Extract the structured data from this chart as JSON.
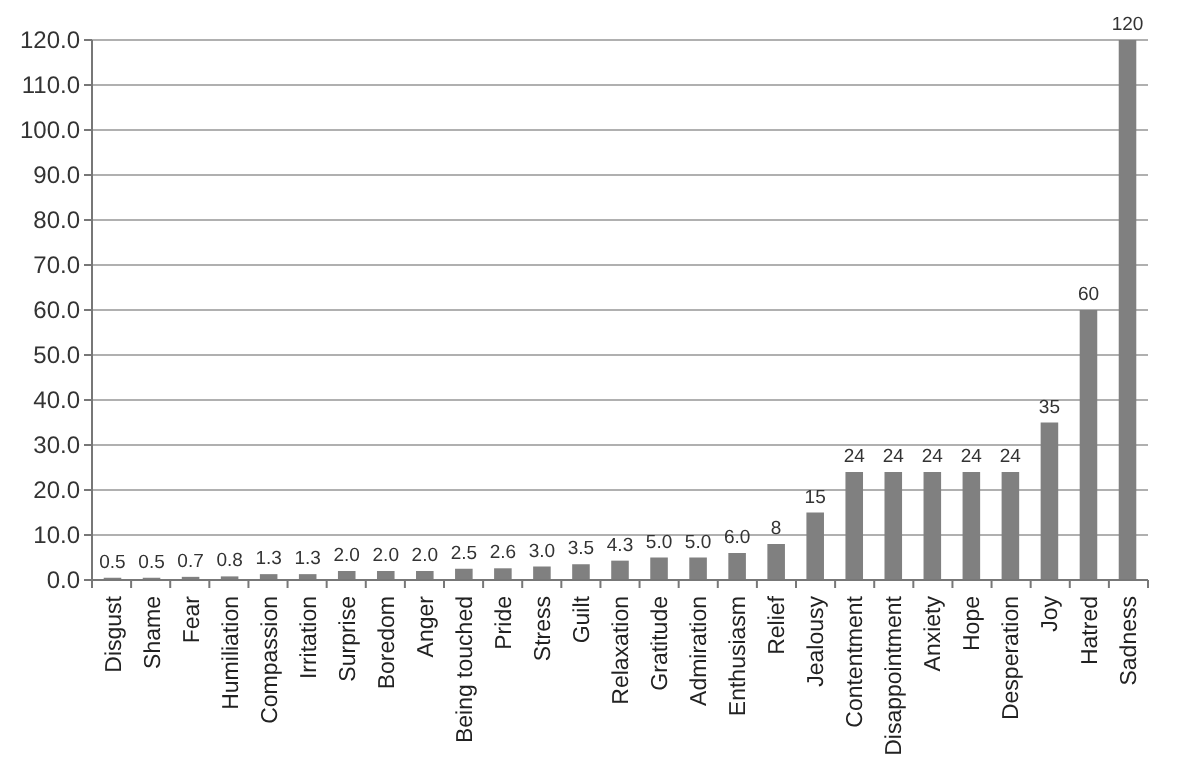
{
  "chart_data": {
    "type": "bar",
    "categories": [
      "Disgust",
      "Shame",
      "Fear",
      "Humiliation",
      "Compassion",
      "Irritation",
      "Surprise",
      "Boredom",
      "Anger",
      "Being touched",
      "Pride",
      "Stress",
      "Guilt",
      "Relaxation",
      "Gratitude",
      "Admiration",
      "Enthusiasm",
      "Relief",
      "Jealousy",
      "Contentment",
      "Disappointment",
      "Anxiety",
      "Hope",
      "Desperation",
      "Joy",
      "Hatred",
      "Sadness"
    ],
    "values": [
      0.5,
      0.5,
      0.7,
      0.8,
      1.3,
      1.3,
      2.0,
      2.0,
      2.0,
      2.5,
      2.6,
      3.0,
      3.5,
      4.3,
      5.0,
      5.0,
      6.0,
      8,
      15,
      24,
      24,
      24,
      24,
      24,
      35,
      60,
      120
    ],
    "value_labels": [
      "0.5",
      "0.5",
      "0.7",
      "0.8",
      "1.3",
      "1.3",
      "2.0",
      "2.0",
      "2.0",
      "2.5",
      "2.6",
      "3.0",
      "3.5",
      "4.3",
      "5.0",
      "5.0",
      "6.0",
      "8",
      "15",
      "24",
      "24",
      "24",
      "24",
      "24",
      "35",
      "60",
      "120"
    ],
    "color": "#808080",
    "ylim": [
      0,
      120
    ],
    "yticks": [
      {
        "value": 0,
        "label": "0.0"
      },
      {
        "value": 10,
        "label": "10.0"
      },
      {
        "value": 20,
        "label": "20.0"
      },
      {
        "value": 30,
        "label": "30.0"
      },
      {
        "value": 40,
        "label": "40.0"
      },
      {
        "value": 50,
        "label": "50.0"
      },
      {
        "value": 60,
        "label": "60.0"
      },
      {
        "value": 70,
        "label": "70.0"
      },
      {
        "value": 80,
        "label": "80.0"
      },
      {
        "value": 90,
        "label": "90.0"
      },
      {
        "value": 100,
        "label": "100.0"
      },
      {
        "value": 110,
        "label": "110.0"
      },
      {
        "value": 120,
        "label": "120.0"
      }
    ],
    "grid": "y"
  }
}
